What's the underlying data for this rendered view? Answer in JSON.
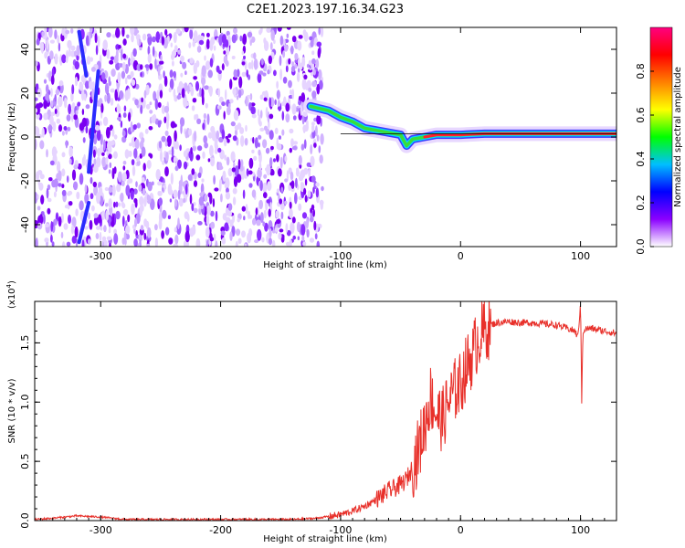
{
  "title": "C2E1.2023.197.16.34.G23",
  "chart_data": [
    {
      "type": "heatmap",
      "xlabel": "Height of straight line (km)",
      "ylabel": "Frequency (Hz)",
      "xlim": [
        -355,
        130
      ],
      "ylim": [
        -50,
        50
      ],
      "x_ticks": [
        -300,
        -200,
        -100,
        0,
        100
      ],
      "x_tick_labels": [
        "-300",
        "-200",
        "-100",
        "0",
        "100"
      ],
      "y_ticks": [
        -40,
        -20,
        0,
        20,
        40
      ],
      "y_tick_labels": [
        "-40",
        "-20",
        "0",
        "20",
        "40"
      ],
      "noise_region_x": [
        -355,
        -115
      ],
      "signal_track": {
        "x": [
          -125,
          -110,
          -100,
          -90,
          -80,
          -70,
          -60,
          -50,
          -45,
          -40,
          -30,
          -20,
          -10,
          0,
          20,
          40,
          60,
          80,
          100,
          130
        ],
        "y": [
          14,
          12,
          9,
          7,
          4,
          3,
          2,
          1,
          -4,
          -1,
          0,
          1,
          1,
          1,
          1.5,
          1.5,
          1.5,
          1.5,
          1.5,
          1.5
        ]
      },
      "streaks": [
        {
          "x": [
            -318,
            -312
          ],
          "y": [
            48,
            28
          ]
        },
        {
          "x": [
            -310,
            -302
          ],
          "y": [
            -16,
            30
          ]
        },
        {
          "x": [
            -318,
            -310
          ],
          "y": [
            -48,
            -30
          ]
        }
      ],
      "colorbar": {
        "label": "Normalized spectral amplitude",
        "range": [
          0,
          1
        ],
        "ticks": [
          0.0,
          0.2,
          0.4,
          0.6,
          0.8
        ],
        "tick_labels": [
          "0.0",
          "0.2",
          "0.4",
          "0.6",
          "0.8"
        ],
        "colors": [
          "#ffffff",
          "#8b00ff",
          "#0000ff",
          "#00bfff",
          "#00ff00",
          "#ffff00",
          "#ff8000",
          "#ff0000",
          "#ff0080"
        ]
      }
    },
    {
      "type": "line",
      "xlabel": "Height of straight line (km)",
      "ylabel": "SNR (10 * v/v)",
      "y_multiplier_label": "(x10",
      "y_multiplier_exp": "4",
      "xlim": [
        -355,
        130
      ],
      "ylim": [
        0,
        1.85
      ],
      "x_ticks": [
        -300,
        -200,
        -100,
        0,
        100
      ],
      "x_tick_labels": [
        "-300",
        "-200",
        "-100",
        "0",
        "100"
      ],
      "y_ticks": [
        0.0,
        0.5,
        1.0,
        1.5
      ],
      "y_tick_labels": [
        "0.0",
        "0.5",
        "1.0",
        "1.5"
      ],
      "color": "#e8302a",
      "series": [
        {
          "x": [
            -355,
            -340,
            -320,
            -300,
            -280,
            -260,
            -240,
            -220,
            -200,
            -180,
            -160,
            -140,
            -120,
            -100,
            -90,
            -80,
            -70,
            -60,
            -50,
            -45,
            -40,
            -35,
            -30,
            -25,
            -20,
            -15,
            -10,
            -5,
            0,
            5,
            10,
            15,
            20,
            25,
            30,
            40,
            50,
            60,
            70,
            80,
            90,
            95,
            98,
            100,
            101,
            102,
            105,
            110,
            120,
            130
          ],
          "y": [
            0.01,
            0.02,
            0.04,
            0.03,
            0.01,
            0.01,
            0.01,
            0.01,
            0.01,
            0.01,
            0.01,
            0.01,
            0.02,
            0.05,
            0.08,
            0.12,
            0.18,
            0.25,
            0.3,
            0.35,
            0.45,
            0.6,
            0.8,
            1.05,
            0.9,
            0.85,
            1.0,
            1.1,
            1.15,
            1.3,
            1.4,
            1.55,
            1.6,
            1.65,
            1.67,
            1.68,
            1.67,
            1.67,
            1.66,
            1.65,
            1.62,
            1.6,
            1.55,
            1.85,
            1.0,
            1.6,
            1.62,
            1.62,
            1.6,
            1.58
          ]
        }
      ]
    }
  ]
}
